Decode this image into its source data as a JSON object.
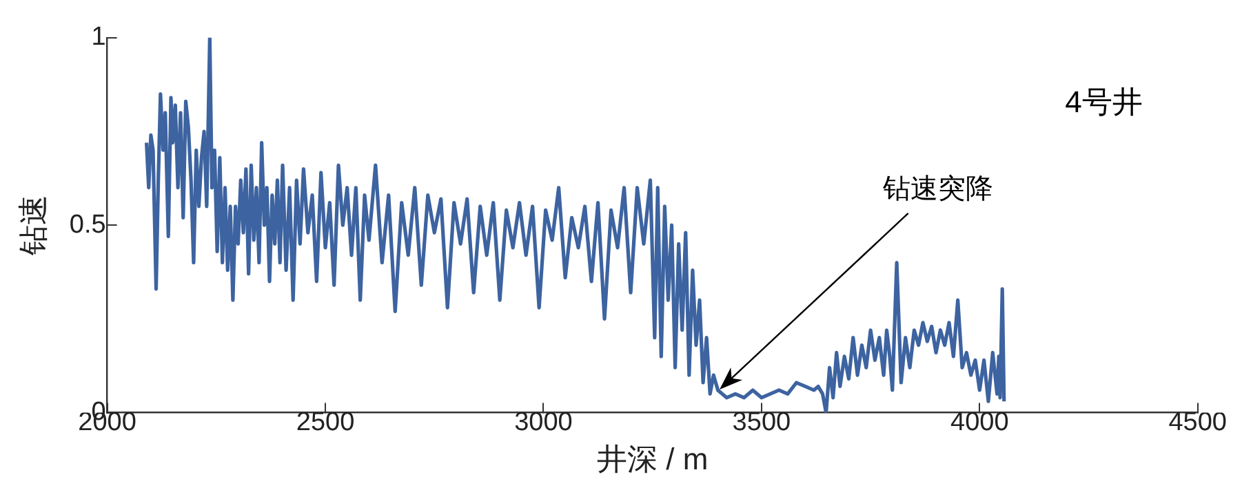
{
  "chart_data": {
    "type": "line",
    "xlabel": "井深 / m",
    "ylabel": "钻速",
    "xlim": [
      2000,
      4500
    ],
    "xticks": [
      2000,
      2500,
      3000,
      3500,
      4000,
      4500
    ],
    "ylim": [
      0,
      1
    ],
    "yticks": [
      0,
      0.5,
      1
    ],
    "grid": false,
    "legend": false,
    "marker": "none",
    "line_style": "solid",
    "annotations": [
      "4号井",
      "钻速突降"
    ],
    "series": [
      {
        "color": "#3d63a0",
        "x": [
          2090,
          2095,
          2100,
          2105,
          2112,
          2117,
          2122,
          2128,
          2133,
          2140,
          2146,
          2150,
          2156,
          2162,
          2168,
          2174,
          2180,
          2186,
          2192,
          2198,
          2204,
          2210,
          2216,
          2222,
          2228,
          2235,
          2240,
          2246,
          2252,
          2258,
          2264,
          2270,
          2276,
          2282,
          2288,
          2294,
          2300,
          2306,
          2312,
          2318,
          2324,
          2330,
          2336,
          2342,
          2348,
          2354,
          2360,
          2366,
          2372,
          2378,
          2384,
          2390,
          2396,
          2402,
          2410,
          2418,
          2426,
          2434,
          2442,
          2450,
          2460,
          2470,
          2480,
          2490,
          2500,
          2510,
          2520,
          2530,
          2540,
          2550,
          2560,
          2570,
          2580,
          2590,
          2600,
          2615,
          2630,
          2645,
          2660,
          2675,
          2690,
          2705,
          2720,
          2735,
          2750,
          2765,
          2780,
          2795,
          2810,
          2825,
          2840,
          2855,
          2870,
          2885,
          2900,
          2915,
          2930,
          2945,
          2960,
          2975,
          2990,
          3005,
          3020,
          3035,
          3050,
          3065,
          3080,
          3095,
          3110,
          3125,
          3140,
          3155,
          3170,
          3185,
          3200,
          3215,
          3230,
          3245,
          3255,
          3262,
          3270,
          3278,
          3286,
          3294,
          3302,
          3310,
          3318,
          3326,
          3334,
          3342,
          3350,
          3358,
          3366,
          3374,
          3382,
          3390,
          3400,
          3420,
          3440,
          3460,
          3480,
          3500,
          3520,
          3540,
          3560,
          3580,
          3600,
          3620,
          3630,
          3640,
          3648,
          3656,
          3664,
          3672,
          3680,
          3690,
          3700,
          3710,
          3720,
          3730,
          3740,
          3750,
          3760,
          3770,
          3780,
          3787,
          3794,
          3800,
          3810,
          3820,
          3830,
          3840,
          3850,
          3860,
          3870,
          3880,
          3890,
          3900,
          3910,
          3920,
          3930,
          3940,
          3950,
          3960,
          3970,
          3980,
          3990,
          4000,
          4010,
          4020,
          4030,
          4040,
          4044,
          4047,
          4052,
          4056
        ],
        "values": [
          0.72,
          0.6,
          0.74,
          0.7,
          0.33,
          0.62,
          0.85,
          0.7,
          0.8,
          0.47,
          0.84,
          0.72,
          0.82,
          0.6,
          0.8,
          0.52,
          0.83,
          0.76,
          0.62,
          0.4,
          0.7,
          0.55,
          0.68,
          0.75,
          0.55,
          1.0,
          0.6,
          0.7,
          0.43,
          0.68,
          0.4,
          0.6,
          0.38,
          0.55,
          0.3,
          0.55,
          0.45,
          0.62,
          0.48,
          0.65,
          0.37,
          0.66,
          0.46,
          0.6,
          0.4,
          0.72,
          0.5,
          0.6,
          0.35,
          0.58,
          0.45,
          0.62,
          0.4,
          0.66,
          0.38,
          0.6,
          0.3,
          0.62,
          0.45,
          0.65,
          0.48,
          0.58,
          0.35,
          0.64,
          0.44,
          0.56,
          0.34,
          0.66,
          0.5,
          0.6,
          0.42,
          0.6,
          0.3,
          0.58,
          0.46,
          0.66,
          0.4,
          0.58,
          0.27,
          0.56,
          0.42,
          0.6,
          0.34,
          0.58,
          0.48,
          0.57,
          0.28,
          0.56,
          0.45,
          0.57,
          0.32,
          0.55,
          0.42,
          0.56,
          0.3,
          0.54,
          0.44,
          0.56,
          0.42,
          0.55,
          0.28,
          0.54,
          0.46,
          0.6,
          0.36,
          0.52,
          0.44,
          0.55,
          0.35,
          0.56,
          0.25,
          0.54,
          0.44,
          0.6,
          0.32,
          0.6,
          0.45,
          0.62,
          0.2,
          0.6,
          0.15,
          0.55,
          0.3,
          0.5,
          0.12,
          0.45,
          0.22,
          0.48,
          0.1,
          0.38,
          0.18,
          0.3,
          0.08,
          0.2,
          0.05,
          0.1,
          0.06,
          0.04,
          0.05,
          0.04,
          0.06,
          0.04,
          0.05,
          0.06,
          0.05,
          0.08,
          0.07,
          0.06,
          0.07,
          0.05,
          0.0,
          0.12,
          0.04,
          0.16,
          0.07,
          0.15,
          0.09,
          0.2,
          0.1,
          0.18,
          0.12,
          0.22,
          0.14,
          0.2,
          0.1,
          0.22,
          0.15,
          0.06,
          0.4,
          0.08,
          0.2,
          0.12,
          0.22,
          0.18,
          0.24,
          0.19,
          0.23,
          0.16,
          0.22,
          0.18,
          0.24,
          0.15,
          0.3,
          0.12,
          0.16,
          0.1,
          0.14,
          0.06,
          0.14,
          0.03,
          0.16,
          0.05,
          0.15,
          0.04,
          0.33,
          0.03
        ]
      }
    ]
  }
}
